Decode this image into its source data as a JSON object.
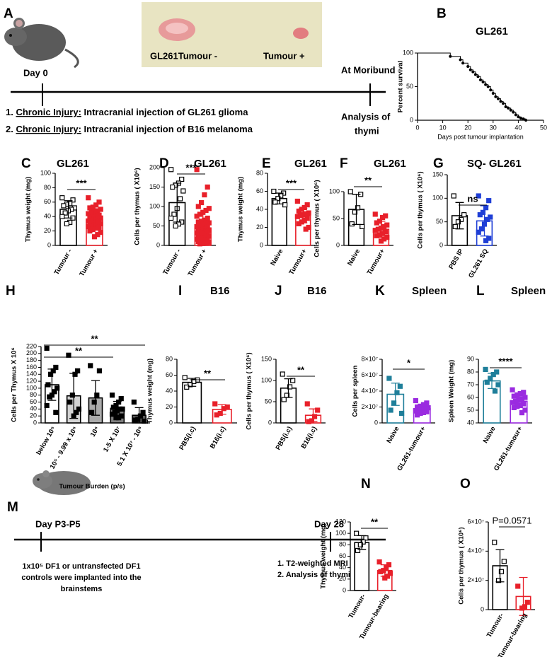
{
  "panel_a": {
    "panel": "A",
    "photo_labels": [
      "GL261Tumour -",
      "Tumour +"
    ],
    "start": "Day 0",
    "end": "At Moribund",
    "end_note": [
      "Analysis of",
      "thymi"
    ],
    "steps": [
      {
        "num": "1.",
        "underlined": "Chronic Injury:",
        "text": "Intracranial injection of GL261 glioma"
      },
      {
        "num": "2.",
        "underlined": "Chronic Injury:",
        "text": "Intracranial injection of B16 melanoma"
      }
    ]
  },
  "panel_m": {
    "panel": "M",
    "start": "Day P3-P5",
    "end": "Day 28",
    "start_note": [
      "1x10⁵ DF1 or untransfected DF1",
      "controls were implanted into the",
      "brainstems"
    ],
    "end_steps": [
      {
        "num": "1.",
        "text": "T2-weighted MRI"
      },
      {
        "num": "2.",
        "text": "Analysis of thymi"
      }
    ]
  },
  "chart_data": [
    {
      "type": "survival",
      "panel": "B",
      "title": "GL261",
      "ylabel": "Percent survival",
      "xlabel": "Days post tumour implantation",
      "color": "#000000",
      "x": [
        0,
        13,
        17,
        18,
        20,
        21,
        22,
        23,
        24,
        25,
        26,
        27,
        28,
        29,
        30,
        31,
        32,
        33,
        34,
        35,
        36,
        37,
        38,
        39,
        40,
        41,
        42,
        43
      ],
      "y": [
        100,
        95,
        90,
        85,
        80,
        75,
        72,
        68,
        65,
        60,
        57,
        53,
        50,
        45,
        40,
        35,
        32,
        28,
        25,
        20,
        18,
        15,
        12,
        8,
        5,
        3,
        2,
        0
      ],
      "xlim": [
        0,
        50
      ],
      "xticks": [
        0,
        10,
        20,
        30,
        40,
        50
      ],
      "ylim": [
        0,
        100
      ],
      "yticks": [
        0,
        50,
        100
      ]
    },
    {
      "type": "bar",
      "panel": "C",
      "title": "GL261",
      "ylabel": "Thymus weight (mg)",
      "categories": [
        "Tumour -",
        "Tumour +"
      ],
      "values": [
        50,
        35
      ],
      "errors": [
        12,
        13
      ],
      "points": [
        [
          66,
          63,
          58,
          57,
          55,
          52,
          50,
          48,
          45,
          40,
          38,
          32,
          30
        ],
        [
          66,
          60,
          56,
          53,
          52,
          50,
          48,
          47,
          45,
          44,
          42,
          41,
          40,
          39,
          38,
          37,
          36,
          35,
          34,
          33,
          32,
          31,
          30,
          30,
          29,
          28,
          27,
          26,
          25,
          24,
          22,
          20,
          18,
          15,
          12
        ]
      ],
      "colors": [
        "#000000",
        "#e8202a"
      ],
      "bar_fills": [
        "#ffffff",
        "#ffffff"
      ],
      "open_markers": [
        true,
        false
      ],
      "ylim": [
        0,
        100
      ],
      "yticks": [
        0,
        20,
        40,
        60,
        80,
        100
      ],
      "significance": [
        {
          "label": "***"
        }
      ]
    },
    {
      "type": "bar",
      "panel": "D",
      "title": "GL261",
      "ylabel": "Cells per thymus ( X10⁶)",
      "categories": [
        "Tumour -",
        "Tumour +"
      ],
      "values": [
        110,
        45
      ],
      "errors": [
        50,
        40
      ],
      "points": [
        [
          195,
          170,
          160,
          155,
          150,
          140,
          120,
          95,
          80,
          70,
          60,
          55,
          50
        ],
        [
          195,
          150,
          130,
          110,
          100,
          95,
          90,
          85,
          80,
          75,
          70,
          65,
          62,
          60,
          58,
          55,
          52,
          50,
          48,
          46,
          44,
          42,
          40,
          38,
          36,
          35,
          33,
          32,
          30,
          28,
          26,
          25,
          24,
          22,
          20,
          18,
          16,
          15,
          14,
          12,
          10,
          8,
          6,
          5,
          4
        ]
      ],
      "colors": [
        "#000000",
        "#e8202a"
      ],
      "bar_fills": [
        "#ffffff",
        "#ffffff"
      ],
      "open_markers": [
        true,
        false
      ],
      "ylim": [
        0,
        200
      ],
      "yticks": [
        0,
        50,
        100,
        150,
        200
      ],
      "significance": [
        {
          "label": "***"
        }
      ]
    },
    {
      "type": "bar",
      "panel": "E",
      "title": "GL261",
      "ylabel": "Thymus weight (mg)",
      "categories": [
        "Naive",
        "Tumour+"
      ],
      "values": [
        52,
        33
      ],
      "errors": [
        6,
        8
      ],
      "points": [
        [
          60,
          58,
          55,
          52,
          48,
          45
        ],
        [
          49,
          45,
          42,
          40,
          38,
          36,
          35,
          34,
          33,
          32,
          30,
          28,
          26,
          24,
          20,
          18
        ]
      ],
      "colors": [
        "#000000",
        "#e8202a"
      ],
      "bar_fills": [
        "#ffffff",
        "#ffffff"
      ],
      "open_markers": [
        true,
        false
      ],
      "ylim": [
        0,
        80
      ],
      "yticks": [
        0,
        20,
        40,
        60,
        80
      ],
      "significance": [
        {
          "label": "***"
        }
      ]
    },
    {
      "type": "bar",
      "panel": "F",
      "title": "GL261",
      "ylabel": "Cells per thymus ( X10⁶)",
      "categories": [
        "Naive",
        "Tumour+"
      ],
      "values": [
        67,
        30
      ],
      "errors": [
        28,
        15
      ],
      "points": [
        [
          100,
          95,
          70,
          62,
          40,
          35
        ],
        [
          58,
          55,
          52,
          45,
          42,
          38,
          35,
          32,
          30,
          28,
          25,
          22,
          20,
          18,
          15,
          12,
          8
        ]
      ],
      "colors": [
        "#000000",
        "#e8202a"
      ],
      "bar_fills": [
        "#ffffff",
        "#ffffff"
      ],
      "open_markers": [
        true,
        false
      ],
      "ylim": [
        0,
        100
      ],
      "yticks": [
        0,
        50,
        100
      ],
      "significance": [
        {
          "label": "**"
        }
      ]
    },
    {
      "type": "bar",
      "panel": "G",
      "title": "SQ- GL261",
      "ylabel": "Cells per thymus ( X10⁶)",
      "categories": [
        "PBS IP",
        "GL261 SQ"
      ],
      "values": [
        63,
        52
      ],
      "errors": [
        28,
        32
      ],
      "points": [
        [
          105,
          65,
          55,
          50,
          40
        ],
        [
          105,
          95,
          80,
          70,
          65,
          60,
          55,
          45,
          35,
          28,
          15,
          10
        ]
      ],
      "colors": [
        "#000000",
        "#1f3fd6"
      ],
      "bar_fills": [
        "#ffffff",
        "#ffffff"
      ],
      "open_markers": [
        true,
        false
      ],
      "ylim": [
        0,
        150
      ],
      "yticks": [
        0,
        50,
        100,
        150
      ],
      "significance": [
        {
          "label": "ns"
        }
      ]
    },
    {
      "type": "bar",
      "panel": "H",
      "ylabel": "Cells per Thymus X 10⁶",
      "xlabel": "Tumour Burden (p/s)",
      "categories": [
        "below 10⁵",
        "10⁵ - 9.99 x 10⁵",
        "10⁶",
        "1-5 X 10⁷",
        "5.1 X 10⁷ - 10⁸"
      ],
      "values": [
        110,
        78,
        72,
        42,
        22
      ],
      "errors": [
        45,
        65,
        50,
        20,
        22
      ],
      "points": [
        [
          215,
          160,
          150,
          140,
          110,
          100,
          90,
          80,
          75,
          50,
          30
        ],
        [
          195,
          150,
          140,
          80,
          60,
          40,
          30,
          20
        ],
        [
          165,
          150,
          80,
          60,
          30
        ],
        [
          80,
          70,
          60,
          50,
          45,
          40,
          40,
          35,
          30,
          25,
          20,
          15,
          15
        ],
        [
          60,
          30,
          20,
          10,
          8,
          5
        ]
      ],
      "colors": [
        "#000000",
        "#000000",
        "#000000",
        "#000000",
        "#000000"
      ],
      "bar_fills": [
        "#ffffff",
        "#d4d4d4",
        "#aaaaaa",
        "#7f7f7f",
        "#5a5a5a"
      ],
      "open_markers": [
        false,
        false,
        false,
        false,
        false
      ],
      "ylim": [
        0,
        220
      ],
      "yticks": [
        0,
        20,
        40,
        60,
        80,
        100,
        120,
        140,
        160,
        180,
        200,
        220
      ],
      "significance": [
        {
          "label": "**"
        },
        {
          "label": "**"
        }
      ]
    },
    {
      "type": "bar",
      "panel": "I",
      "title": "B16",
      "ylabel": "Thymus weight (mg)",
      "categories": [
        "PBS(i.c)",
        "B16(i.c)"
      ],
      "values": [
        51,
        17
      ],
      "errors": [
        5,
        6
      ],
      "points": [
        [
          57,
          54,
          52,
          48,
          45
        ],
        [
          24,
          20,
          18,
          12,
          10
        ]
      ],
      "colors": [
        "#000000",
        "#e8202a"
      ],
      "bar_fills": [
        "#ffffff",
        "#ffffff"
      ],
      "open_markers": [
        true,
        false
      ],
      "ylim": [
        0,
        80
      ],
      "yticks": [
        0,
        20,
        40,
        60,
        80
      ],
      "significance": [
        {
          "label": "**"
        }
      ]
    },
    {
      "type": "bar",
      "panel": "J",
      "title": "B16",
      "ylabel": "Cells per thymus ( X10⁶)",
      "categories": [
        "PBS(i.c)",
        "B16(i.c)"
      ],
      "values": [
        82,
        18
      ],
      "errors": [
        22,
        15
      ],
      "points": [
        [
          115,
          100,
          85,
          65,
          55
        ],
        [
          45,
          30,
          15,
          5,
          3
        ]
      ],
      "colors": [
        "#000000",
        "#e8202a"
      ],
      "bar_fills": [
        "#ffffff",
        "#ffffff"
      ],
      "open_markers": [
        true,
        false
      ],
      "ylim": [
        0,
        150
      ],
      "yticks": [
        0,
        50,
        100,
        150
      ],
      "significance": [
        {
          "label": "**"
        }
      ]
    },
    {
      "type": "bar",
      "panel": "K",
      "title": "Spleen",
      "ylabel": "Cells per spleen",
      "categories": [
        "Naive",
        "GL261-tumour+"
      ],
      "values": [
        36000000,
        18000000
      ],
      "errors": [
        14000000,
        5000000
      ],
      "points": [
        [
          56000000,
          46000000,
          38000000,
          25000000,
          16000000,
          12000000
        ],
        [
          28000000,
          25000000,
          23000000,
          21000000,
          20000000,
          19000000,
          18000000,
          17000000,
          16000000,
          15000000,
          14000000,
          13000000,
          12000000,
          10000000
        ]
      ],
      "colors": [
        "#1f7f9a",
        "#9a2be0"
      ],
      "bar_fills": [
        "#ffffff",
        "#ffffff"
      ],
      "open_markers": [
        false,
        false
      ],
      "ylim": [
        0,
        80000000
      ],
      "yticks": [
        0,
        {
          "value": 20000000,
          "label": "2×10⁷"
        },
        {
          "value": 40000000,
          "label": "4×10⁷"
        },
        {
          "value": 60000000,
          "label": "6×10⁷"
        },
        {
          "value": 80000000,
          "label": "8×10⁷"
        }
      ],
      "significance": [
        {
          "label": "*"
        }
      ]
    },
    {
      "type": "bar",
      "panel": "L",
      "title": "Spleen",
      "ylabel": "Spleen Weight (mg)",
      "categories": [
        "Naive",
        "GL261-tumour+"
      ],
      "values": [
        73,
        57
      ],
      "errors": [
        6,
        5
      ],
      "points": [
        [
          82,
          80,
          78,
          75,
          72,
          70,
          65
        ],
        [
          66,
          64,
          63,
          62,
          61,
          60,
          59,
          58,
          57,
          56,
          55,
          54,
          53,
          52,
          50,
          48
        ]
      ],
      "colors": [
        "#1f7f9a",
        "#9a2be0"
      ],
      "bar_fills": [
        "#ffffff",
        "#ffffff"
      ],
      "open_markers": [
        false,
        false
      ],
      "ylim": [
        40,
        90
      ],
      "yticks": [
        40,
        50,
        60,
        70,
        80,
        90
      ],
      "significance": [
        {
          "label": "****"
        }
      ]
    },
    {
      "type": "bar",
      "panel": "N",
      "ylabel": "Thymus weight (mg)",
      "categories": [
        "Tumour-",
        "Tumour-bearing"
      ],
      "values": [
        84,
        35
      ],
      "errors": [
        12,
        10
      ],
      "points": [
        [
          100,
          92,
          85,
          80,
          70
        ],
        [
          50,
          45,
          40,
          35,
          33,
          30,
          25,
          22
        ]
      ],
      "colors": [
        "#000000",
        "#e8202a"
      ],
      "bar_fills": [
        "#ffffff",
        "#ffffff"
      ],
      "open_markers": [
        true,
        false
      ],
      "ylim": [
        0,
        120
      ],
      "yticks": [
        0,
        20,
        40,
        60,
        80,
        100,
        120
      ],
      "significance": [
        {
          "label": "**"
        }
      ]
    },
    {
      "type": "bar",
      "panel": "O",
      "ylabel": "Cells per thymus ( X10⁶)",
      "categories": [
        "Tumour-",
        "Tumour-bearing"
      ],
      "values": [
        30000000,
        9000000
      ],
      "errors": [
        11000000,
        13000000
      ],
      "points": [
        [
          46000000,
          33000000,
          26000000,
          20000000
        ],
        [
          16000000,
          5000000,
          2000000,
          1000000
        ]
      ],
      "colors": [
        "#000000",
        "#e8202a"
      ],
      "bar_fills": [
        "#ffffff",
        "#ffffff"
      ],
      "open_markers": [
        true,
        false
      ],
      "ylim": [
        0,
        60000000
      ],
      "yticks": [
        0,
        {
          "value": 20000000,
          "label": "2×10⁷"
        },
        {
          "value": 40000000,
          "label": "4×10⁷"
        },
        {
          "value": 60000000,
          "label": "6×10⁷"
        }
      ],
      "significance": [
        {
          "label": "P=0.0571"
        }
      ]
    }
  ]
}
